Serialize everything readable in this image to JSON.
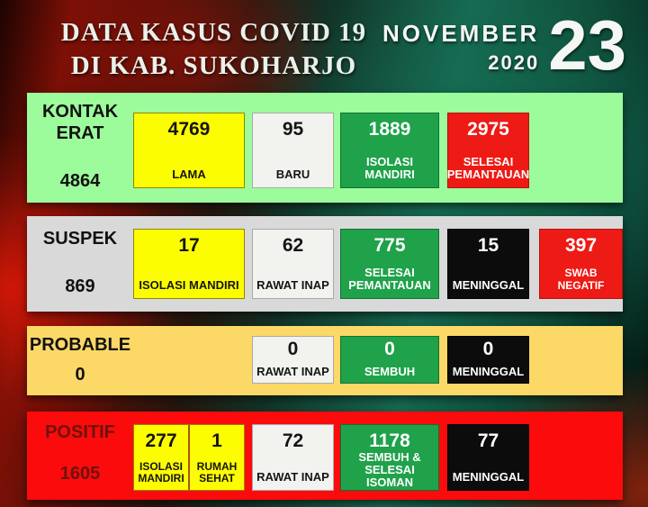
{
  "header": {
    "title_line1": "DATA KASUS COVID 19",
    "title_line2": "DI KAB. SUKOHARJO",
    "month": "NOVEMBER",
    "year": "2020",
    "day": "23"
  },
  "rows": [
    {
      "label": "KONTAK\nERAT",
      "total": "4864",
      "panel_color": "#9cfc9c",
      "cards": [
        {
          "value": "4769",
          "label": "LAMA",
          "color": "#fdfd02"
        },
        {
          "value": "95",
          "label": "BARU",
          "color": "#f2f2ee"
        },
        {
          "value": "1889",
          "label": "ISOLASI MANDIRI",
          "color": "#1fa24a"
        },
        {
          "value": "2975",
          "label": "SELESAI\nPEMANTAUAN",
          "color": "#ee1a15"
        }
      ]
    },
    {
      "label": "SUSPEK",
      "total": "869",
      "panel_color": "#d9d9d9",
      "cards": [
        {
          "value": "17",
          "label": "ISOLASI MANDIRI",
          "color": "#fdfd02"
        },
        {
          "value": "62",
          "label": "RAWAT INAP",
          "color": "#f2f2ee"
        },
        {
          "value": "775",
          "label": "SELESAI\nPEMANTAUAN",
          "color": "#1fa24a"
        },
        {
          "value": "15",
          "label": "MENINGGAL",
          "color": "#0c0c0c"
        },
        {
          "value": "397",
          "label": "SWAB NEGATIF",
          "color": "#ee1a15"
        }
      ]
    },
    {
      "label": "PROBABLE",
      "total": "0",
      "panel_color": "#fcd867",
      "cards": [
        {
          "value": "0",
          "label": "RAWAT INAP",
          "color": "#f2f2ee"
        },
        {
          "value": "0",
          "label": "SEMBUH",
          "color": "#1fa24a"
        },
        {
          "value": "0",
          "label": "MENINGGAL",
          "color": "#0c0c0c"
        }
      ]
    },
    {
      "label": "POSITIF",
      "total": "1605",
      "panel_color": "#fb0b0b",
      "label_color": "#6e120c",
      "cards": [
        {
          "value": "277",
          "label": "ISOLASI\nMANDIRI",
          "color": "#fdfd02"
        },
        {
          "value": "1",
          "label": "RUMAH\nSEHAT",
          "color": "#fdfd02"
        },
        {
          "value": "72",
          "label": "RAWAT INAP",
          "color": "#f2f2ee"
        },
        {
          "value": "1178",
          "label": "SEMBUH &\nSELESAI ISOMAN",
          "color": "#1fa24a"
        },
        {
          "value": "77",
          "label": "MENINGGAL",
          "color": "#0c0c0c"
        }
      ]
    }
  ],
  "colors": {
    "card_yellow": "#fdfd02",
    "card_white": "#f2f2ee",
    "card_green": "#1fa24a",
    "card_red": "#ee1a15",
    "card_black": "#0c0c0c",
    "panel_kontak_erat": "#9cfc9c",
    "panel_suspek": "#d9d9d9",
    "panel_probable": "#fcd867",
    "panel_positif": "#fb0b0b",
    "header_text": "#e9f1ea"
  }
}
